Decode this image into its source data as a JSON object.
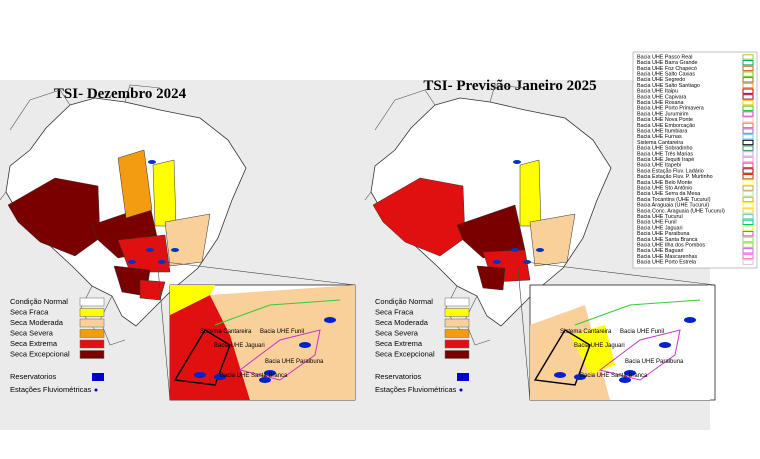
{
  "panels": [
    {
      "title": "TSI- Dezembro 2024",
      "legend": [
        {
          "label": "Condição Normal",
          "color": "#ffffff"
        },
        {
          "label": "Seca Fraca",
          "color": "#ffff00"
        },
        {
          "label": "Seca Moderada",
          "color": "#f9cf9a"
        },
        {
          "label": "Seca Severa",
          "color": "#f39c12"
        },
        {
          "label": "Seca Extrema",
          "color": "#e01010"
        },
        {
          "label": "Seca Excepcional",
          "color": "#7a0000"
        }
      ],
      "reservoirs": "Reservatorios",
      "stations": "Estações Fluviométricas",
      "inset_labels": [
        "Sistema Cantareira",
        "Bacia UHE Jaguari",
        "Bacia UHE Funil",
        "Bacia UHE Paraibuna",
        "Bacia UHE Santa Branca"
      ]
    },
    {
      "title": "TSI- Previsão Janeiro 2025",
      "legend": [
        {
          "label": "Condição Normal",
          "color": "#ffffff"
        },
        {
          "label": "Seca Fraca",
          "color": "#ffff00"
        },
        {
          "label": "Seca Moderada",
          "color": "#f9cf9a"
        },
        {
          "label": "Seca Severa",
          "color": "#f39c12"
        },
        {
          "label": "Seca Extrema",
          "color": "#e01010"
        },
        {
          "label": "Seca Excepcional",
          "color": "#7a0000"
        }
      ],
      "reservoirs": "Reservatorios",
      "stations": "Estações Fluviométricas",
      "inset_labels": [
        "Sistema Cantareira",
        "Bacia UHE Jaguari",
        "Bacia UHE Funil",
        "Bacia UHE Paraibuna",
        "Bacia UHE Santa Branca"
      ]
    }
  ],
  "basin_legend": [
    {
      "label": "Bacia UHE Passo Real",
      "color": "#9acd32"
    },
    {
      "label": "Bacia UHE Barra Grande",
      "color": "#00aa66"
    },
    {
      "label": "Bacia UHE Foz Chapecó",
      "color": "#cc6600"
    },
    {
      "label": "Bacia UHE Salto Caxias",
      "color": "#66cc00"
    },
    {
      "label": "Bacia UHE Segredo",
      "color": "#996633"
    },
    {
      "label": "Bacia UHE Salto Santiago",
      "color": "#ff9900"
    },
    {
      "label": "Bacia UHE Itaipu",
      "color": "#cc0000"
    },
    {
      "label": "Bacia UHE Capivara",
      "color": "#aa0033"
    },
    {
      "label": "Bacia UHE Rosana",
      "color": "#ffcc00"
    },
    {
      "label": "Bacia UHE Porto Primavera",
      "color": "#33cc33"
    },
    {
      "label": "Bacia UHE Jurumirim",
      "color": "#cc33cc"
    },
    {
      "label": "Bacia UHE Nova Ponte",
      "color": "#ffcc99"
    },
    {
      "label": "Bacia UHE Emborcação",
      "color": "#ff6666"
    },
    {
      "label": "Bacia UHE Itumbiara",
      "color": "#9966cc"
    },
    {
      "label": "Bacia UHE Furnas",
      "color": "#66ccff"
    },
    {
      "label": "Sistema Cantareira",
      "color": "#000000"
    },
    {
      "label": "Bacia UHE Sobradinho",
      "color": "#339966"
    },
    {
      "label": "Bacia UHE Três Marias",
      "color": "#cc99ff"
    },
    {
      "label": "Bacia UHE Jequiti Irapé",
      "color": "#ff99cc"
    },
    {
      "label": "Bacia UHE Itapebi",
      "color": "#ff3399"
    },
    {
      "label": "Bacia Estação Fluv. Ladário",
      "color": "#990000"
    },
    {
      "label": "Bacia Estação Fluv. P. Murtinho",
      "color": "#cc3300"
    },
    {
      "label": "Bacia UHE Belo Monte",
      "color": "#ffff66"
    },
    {
      "label": "Bacia UHE Sto Antônio",
      "color": "#cc9966"
    },
    {
      "label": "Bacia UHE Serra da Mesa",
      "color": "#99ff99"
    },
    {
      "label": "Bacia Tocantins (UHE Tucuruí)",
      "color": "#ff9933"
    },
    {
      "label": "Bacia Araguaia (UHE Tucuruí)",
      "color": "#ffff00"
    },
    {
      "label": "Bacia Conc. Araguaia (UHE Tucuruí)",
      "color": "#ffcc33"
    },
    {
      "label": "Bacia UHE Tucuruí",
      "color": "#66cccc"
    },
    {
      "label": "Bacia UHE Funil",
      "color": "#00cc66"
    },
    {
      "label": "Bacia UHE Jaguari",
      "color": "#ccff33"
    },
    {
      "label": "Bacia UHE Paraibuna",
      "color": "#ff33cc"
    },
    {
      "label": "Bacia UHE Santa Branca",
      "color": "#66ff66"
    },
    {
      "label": "Bacia UHE Ilha dos Pombos",
      "color": "#99cc33"
    },
    {
      "label": "Bacia UHE Baguari",
      "color": "#cc66ff"
    },
    {
      "label": "Bacia UHE Mascarenhas",
      "color": "#ff66cc"
    },
    {
      "label": "Bacia UHE Porto Estrela",
      "color": "#cccccc"
    }
  ]
}
